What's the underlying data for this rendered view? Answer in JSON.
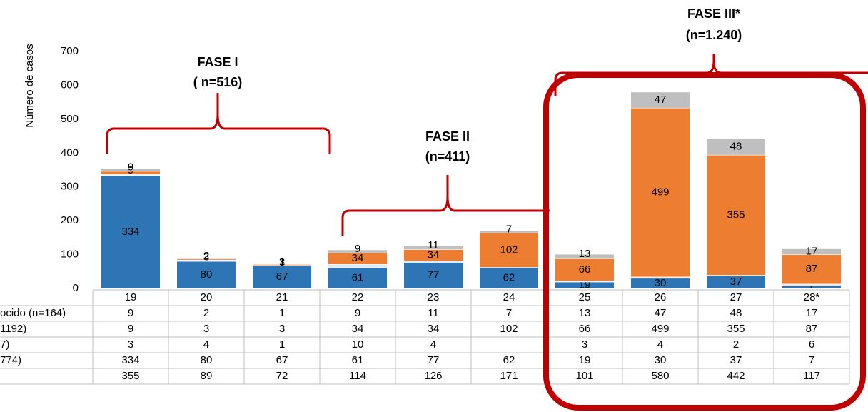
{
  "chart_data": {
    "type": "stacked-bar",
    "y_label": "Número de casos",
    "categories": [
      "19",
      "20",
      "21",
      "22",
      "23",
      "24",
      "25",
      "26",
      "27",
      "28*"
    ],
    "series": [
      {
        "name": "774)",
        "color": "#2e75b6",
        "values": [
          334,
          80,
          67,
          61,
          77,
          62,
          19,
          30,
          37,
          7
        ]
      },
      {
        "name": "7)",
        "color": "#deebf7",
        "values": [
          3,
          4,
          1,
          10,
          4,
          null,
          3,
          4,
          2,
          6
        ]
      },
      {
        "name": "1192)",
        "color": "#ed7d31",
        "values": [
          9,
          3,
          3,
          34,
          34,
          102,
          66,
          499,
          355,
          87
        ]
      },
      {
        "name": "ocido (n=164)",
        "color": "#bfbfbf",
        "values": [
          9,
          2,
          1,
          9,
          11,
          7,
          13,
          47,
          48,
          17
        ]
      }
    ],
    "totals": [
      355,
      89,
      72,
      114,
      126,
      171,
      101,
      580,
      442,
      117
    ],
    "ylim": [
      0,
      700
    ],
    "yticks": [
      0,
      100,
      200,
      300,
      400,
      500,
      600,
      700
    ],
    "annotations": [
      "FASE I",
      "( n=516)",
      "FASE II",
      "(n=411)",
      "FASE III*",
      "(n=1.240)"
    ]
  }
}
